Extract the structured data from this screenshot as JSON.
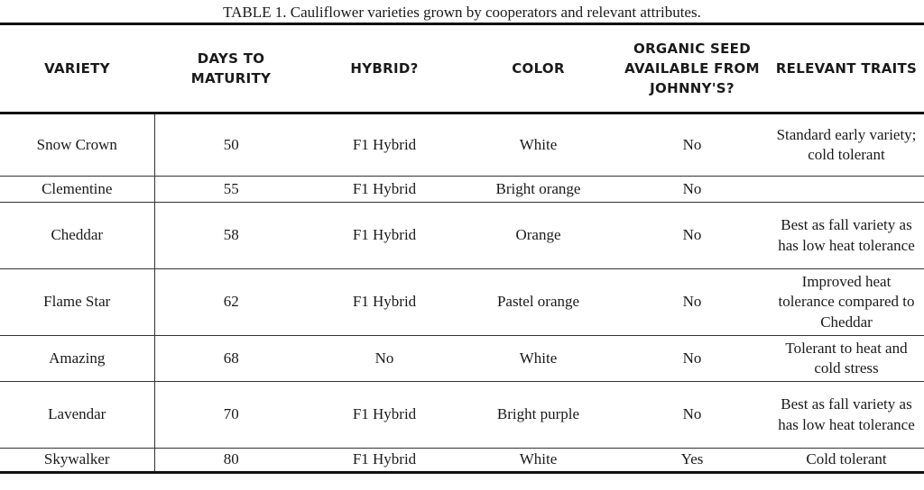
{
  "caption": "TABLE 1. Cauliflower varieties grown by cooperators and relevant attributes.",
  "columns": [
    "VARIETY",
    "DAYS TO MATURITY",
    "HYBRID?",
    "COLOR",
    "ORGANIC SEED AVAILABLE FROM JOHNNY'S?",
    "RELEVANT TRAITS"
  ],
  "rows": [
    [
      "Snow Crown",
      "50",
      "F1 Hybrid",
      "White",
      "No",
      "Standard early variety; cold tolerant"
    ],
    [
      "Clementine",
      "55",
      "F1 Hybrid",
      "Bright orange",
      "No",
      ""
    ],
    [
      "Cheddar",
      "58",
      "F1 Hybrid",
      "Orange",
      "No",
      "Best as fall variety as has low heat tolerance"
    ],
    [
      "Flame Star",
      "62",
      "F1 Hybrid",
      "Pastel orange",
      "No",
      "Improved heat tolerance compared to Cheddar"
    ],
    [
      "Amazing",
      "68",
      "No",
      "White",
      "No",
      "Tolerant to heat and cold stress"
    ],
    [
      "Lavendar",
      "70",
      "F1 Hybrid",
      "Bright purple",
      "No",
      "Best as fall variety as has low heat tolerance"
    ],
    [
      "Skywalker",
      "80",
      "F1 Hybrid",
      "White",
      "Yes",
      "Cold tolerant"
    ]
  ]
}
